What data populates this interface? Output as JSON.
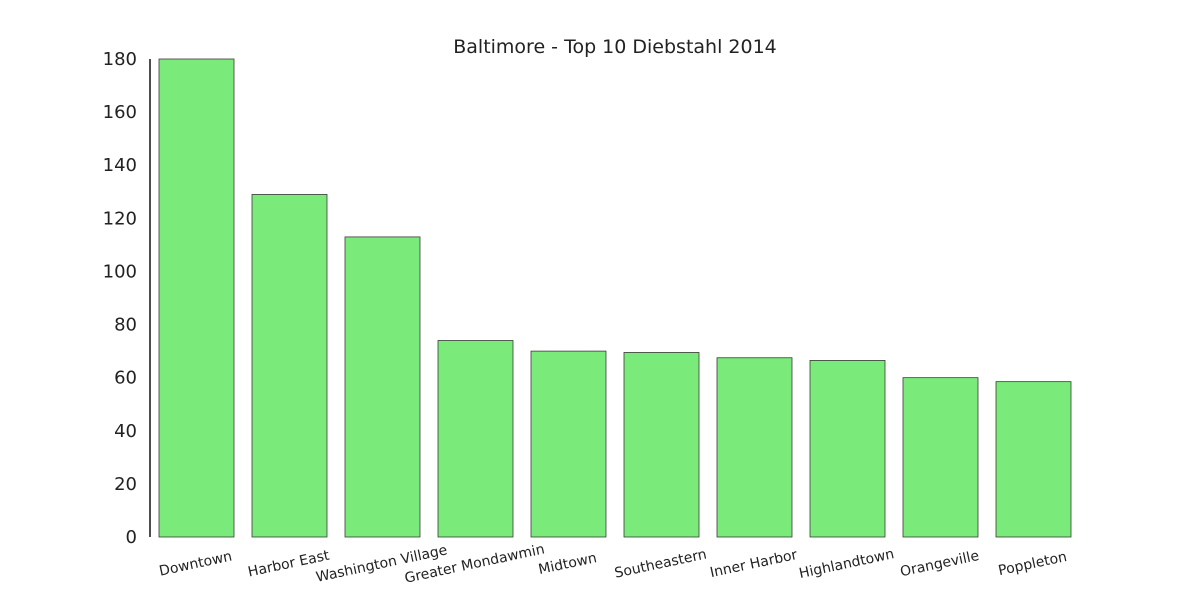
{
  "chart_data": {
    "type": "bar",
    "title": "Baltimore - Top 10 Diebstahl 2014",
    "xlabel": "",
    "ylabel": "",
    "categories": [
      "Downtown",
      "Harbor East",
      "Washington Village",
      "Greater Mondawmin",
      "Midtown",
      "Southeastern",
      "Inner Harbor",
      "Highlandtown",
      "Orangeville",
      "Poppleton"
    ],
    "values": [
      180,
      129,
      113,
      74,
      70,
      69.5,
      67.5,
      66.5,
      60,
      58.5
    ],
    "ylim": [
      0,
      180
    ],
    "yticks": [
      0,
      20,
      40,
      60,
      80,
      100,
      120,
      140,
      160,
      180
    ],
    "grid": false,
    "bar_color": "#7aeb7a",
    "bar_edge_color": "#3a3a3a",
    "x_tick_rotation_deg": -12
  }
}
